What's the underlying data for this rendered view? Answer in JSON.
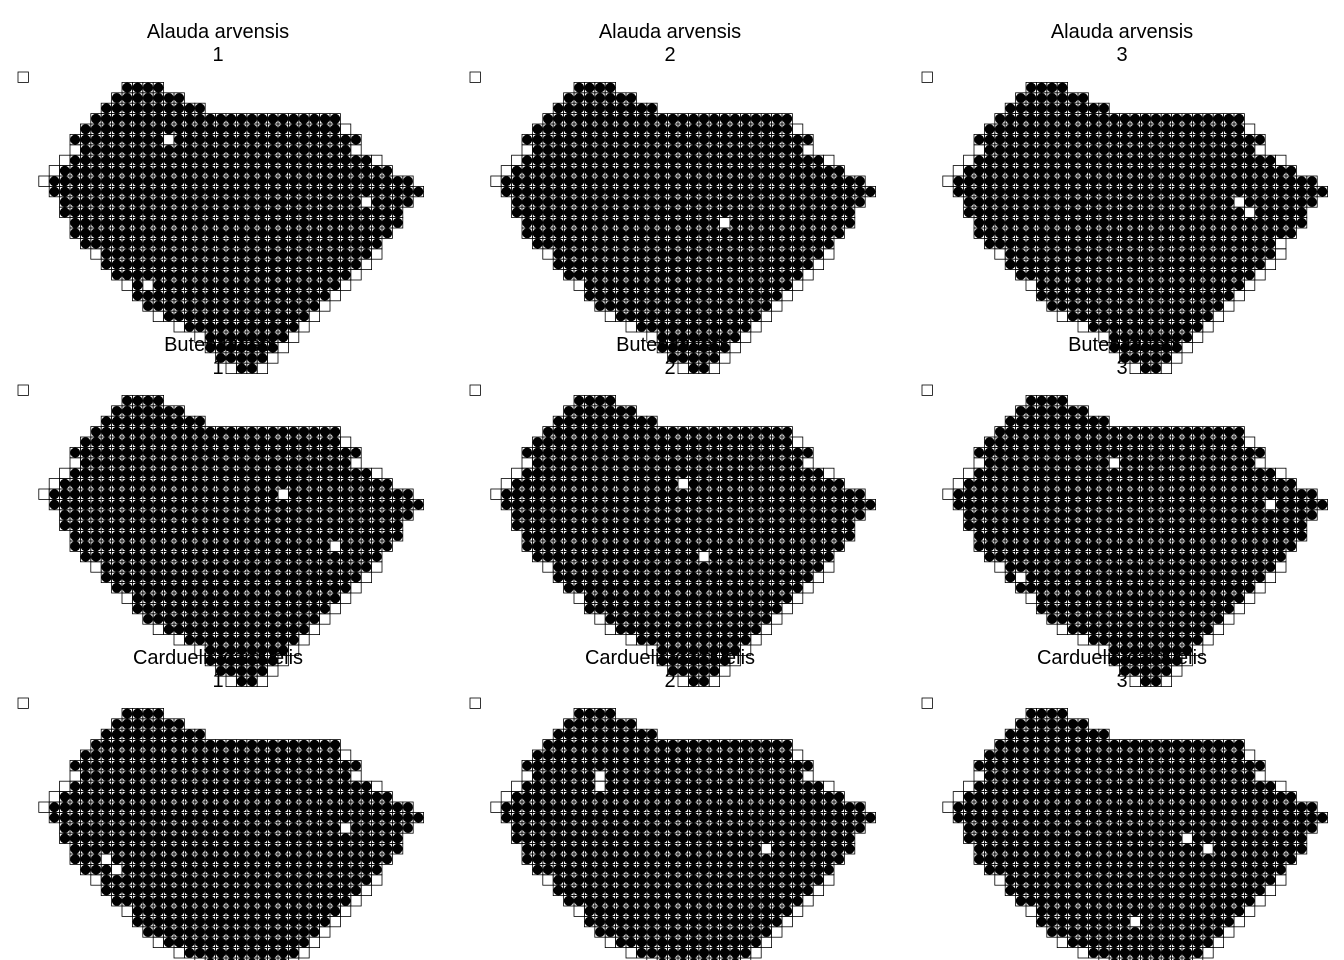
{
  "chart_data": {
    "type": "scatter",
    "grid_template": {
      "rows": [
        [
          0,
          0,
          0
        ],
        [
          10,
          13,
          0
        ],
        [
          9,
          15,
          0
        ],
        [
          8,
          17,
          0
        ],
        [
          7,
          30,
          0
        ],
        [
          6,
          31,
          0
        ],
        [
          5,
          32,
          0
        ],
        [
          5,
          32,
          0
        ],
        [
          4,
          34,
          0
        ],
        [
          3,
          35,
          0
        ],
        [
          2,
          37,
          0
        ],
        [
          3,
          38,
          0
        ],
        [
          4,
          37,
          0
        ],
        [
          4,
          36,
          0
        ],
        [
          5,
          36,
          0
        ],
        [
          5,
          35,
          0
        ],
        [
          6,
          34,
          0
        ],
        [
          7,
          34,
          0
        ],
        [
          8,
          33,
          0
        ],
        [
          9,
          32,
          0
        ],
        [
          10,
          31,
          0
        ],
        [
          11,
          30,
          0
        ],
        [
          12,
          29,
          0
        ],
        [
          13,
          28,
          0
        ],
        [
          15,
          27,
          0
        ],
        [
          17,
          26,
          0
        ],
        [
          18,
          25,
          0
        ],
        [
          19,
          24,
          0
        ],
        [
          20,
          23,
          0
        ]
      ]
    },
    "panels": [
      {
        "species": "Alauda arvensis",
        "period": "1",
        "missing": [
          [
            6,
            14
          ],
          [
            12,
            33
          ],
          [
            20,
            12
          ]
        ]
      },
      {
        "species": "Alauda arvensis",
        "period": "2",
        "missing": [
          [
            14,
            24
          ],
          [
            19,
            8
          ]
        ]
      },
      {
        "species": "Alauda arvensis",
        "period": "3",
        "missing": [
          [
            12,
            2
          ],
          [
            12,
            30
          ],
          [
            13,
            31
          ],
          [
            16,
            34
          ],
          [
            20,
            33
          ]
        ]
      },
      {
        "species": "Buteo buteo",
        "period": "1",
        "missing": [
          [
            10,
            25
          ],
          [
            15,
            30
          ]
        ]
      },
      {
        "species": "Buteo buteo",
        "period": "2",
        "missing": [
          [
            9,
            20
          ],
          [
            16,
            22
          ],
          [
            22,
            12
          ]
        ]
      },
      {
        "species": "Buteo buteo",
        "period": "3",
        "missing": [
          [
            7,
            18
          ],
          [
            11,
            33
          ],
          [
            18,
            9
          ]
        ]
      },
      {
        "species": "Carduelis carduelis",
        "period": "1",
        "missing": [
          [
            15,
            8
          ],
          [
            16,
            9
          ],
          [
            12,
            31
          ]
        ]
      },
      {
        "species": "Carduelis carduelis",
        "period": "2",
        "missing": [
          [
            7,
            12
          ],
          [
            8,
            12
          ],
          [
            14,
            28
          ]
        ]
      },
      {
        "species": "Carduelis carduelis",
        "period": "3",
        "missing": [
          [
            13,
            25
          ],
          [
            14,
            27
          ],
          [
            16,
            3
          ],
          [
            17,
            4
          ],
          [
            21,
            20
          ]
        ]
      }
    ]
  }
}
